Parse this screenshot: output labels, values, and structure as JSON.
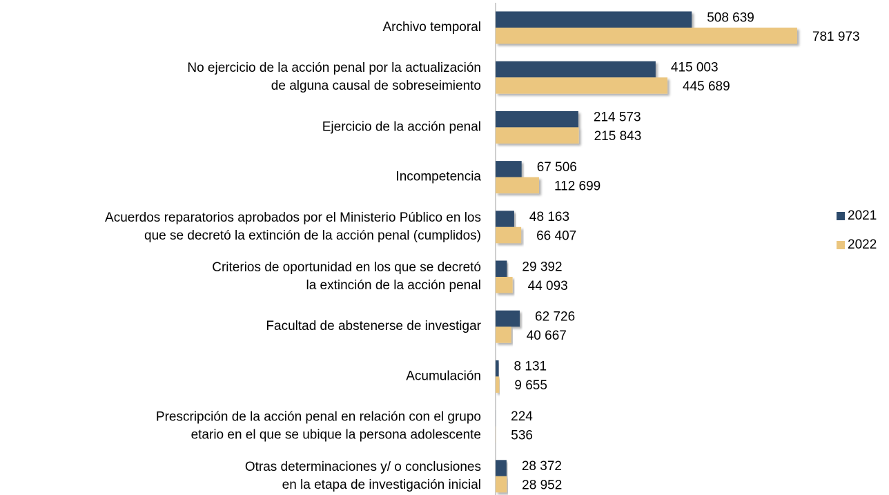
{
  "chart_data": {
    "type": "bar",
    "orientation": "horizontal",
    "categories": [
      [
        "Archivo temporal"
      ],
      [
        "No ejercicio de la acción penal por la actualización",
        "de alguna causal de sobreseimiento"
      ],
      [
        "Ejercicio de la acción penal"
      ],
      [
        "Incompetencia"
      ],
      [
        "Acuerdos reparatorios aprobados por el Ministerio Público en los",
        "que se decretó la extinción de la acción penal (cumplidos)"
      ],
      [
        "Criterios de oportunidad en los que se decretó",
        "la extinción de la acción penal"
      ],
      [
        "Facultad de abstenerse de investigar"
      ],
      [
        "Acumulación"
      ],
      [
        "Prescripción de la acción penal en relación con el grupo",
        "etario en el que se ubique la persona adolescente"
      ],
      [
        "Otras determinaciones y/ o conclusiones",
        "en la etapa de investigación inicial"
      ]
    ],
    "series": [
      {
        "name": "2021",
        "color": "#2d4b6c",
        "values": [
          508639,
          415003,
          214573,
          67506,
          48163,
          29392,
          62726,
          8131,
          224,
          28372
        ],
        "value_labels": [
          "508 639",
          "415 003",
          "214 573",
          "67 506",
          "48 163",
          "29 392",
          "62 726",
          "8 131",
          "224",
          "28 372"
        ]
      },
      {
        "name": "2022",
        "color": "#ebc67f",
        "values": [
          781973,
          445689,
          215843,
          112699,
          66407,
          44093,
          40667,
          9655,
          536,
          28952
        ],
        "value_labels": [
          "781 973",
          "445 689",
          "215 843",
          "112 699",
          "66 407",
          "44 093",
          "40 667",
          "9 655",
          "536",
          "28 952"
        ]
      }
    ],
    "xlim": [
      0,
      800000
    ],
    "legend": "right"
  }
}
